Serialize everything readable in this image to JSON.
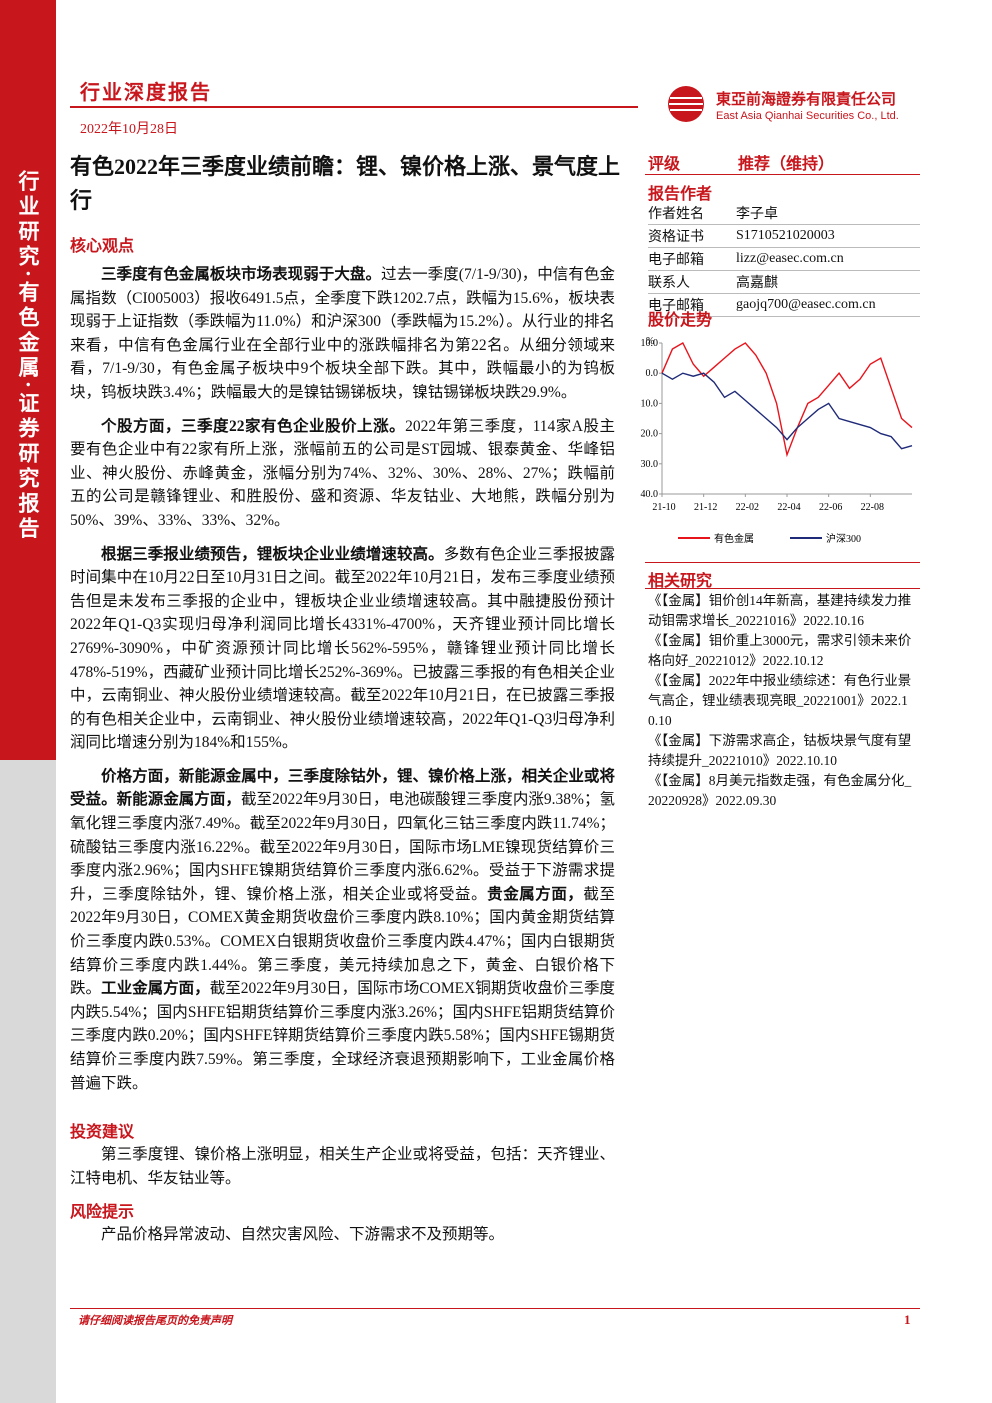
{
  "header": {
    "report_type": "行业深度报告",
    "date": "2022年10月28日",
    "company_cn": "東亞前海證券有限責任公司",
    "company_en": "East Asia Qianhai Securities Co., Ltd."
  },
  "sidebar": "行业研究·有色金属·证券研究报告",
  "title": "有色2022年三季度业绩前瞻：锂、镍价格上涨、景气度上行",
  "core": {
    "heading": "核心观点",
    "paragraphs": [
      [
        {
          "bold": true,
          "text": "三季度有色金属板块市场表现弱于大盘。"
        },
        {
          "text": "过去一季度(7/1-9/30)，中信有色金属指数（CI005003）报收6491.5点，全季度下跌1202.7点，跌幅为15.6%，板块表现弱于上证指数（季跌幅为11.0%）和沪深300（季跌幅为15.2%）。从行业的排名来看，中信有色金属行业在全部行业中的涨跌幅排名为第22名。从细分领域来看，7/1-9/30，有色金属子板块中9个板块全部下跌。其中，跌幅最小的为钨板块，钨板块跌3.4%；跌幅最大的是镍钴锡锑板块，镍钴锡锑板块跌29.9%。"
        }
      ],
      [
        {
          "bold": true,
          "text": "个股方面，三季度22家有色企业股价上涨。"
        },
        {
          "text": "2022年第三季度，114家A股主要有色企业中有22家有所上涨，涨幅前五的公司是ST园城、银泰黄金、华峰铝业、神火股份、赤峰黄金，涨幅分别为74%、32%、30%、28%、27%；跌幅前五的公司是赣锋锂业、和胜股份、盛和资源、华友钴业、大地熊，跌幅分别为50%、39%、33%、33%、32%。"
        }
      ],
      [
        {
          "bold": true,
          "text": "根据三季报业绩预告，锂板块企业业绩增速较高。"
        },
        {
          "text": "多数有色企业三季报披露时间集中在10月22日至10月31日之间。截至2022年10月21日，发布三季度业绩预告但是未发布三季报的企业中，锂板块企业业绩增速较高。其中融捷股份预计2022年Q1-Q3实现归母净利润同比增长4331%-4700%，天齐锂业预计同比增长2769%-3090%，中矿资源预计同比增长562%-595%，赣锋锂业预计同比增长478%-519%，西藏矿业预计同比增长252%-369%。已披露三季报的有色相关企业中，云南铜业、神火股份业绩增速较高。截至2022年10月21日，在已披露三季报的有色相关企业中，云南铜业、神火股份业绩增速较高，2022年Q1-Q3归母净利润同比增速分别为184%和155%。"
        }
      ],
      [
        {
          "bold": true,
          "text": "价格方面，新能源金属中，三季度除钴外，锂、镍价格上涨，相关企业或将受益。新能源金属方面，"
        },
        {
          "text": "截至2022年9月30日，电池碳酸锂三季度内涨9.38%；氢氧化锂三季度内涨7.49%。截至2022年9月30日，四氧化三钴三季度内跌11.74%；硫酸钴三季度内涨16.22%。截至2022年9月30日，国际市场LME镍现货结算价三季度内涨2.96%；国内SHFE镍期货结算价三季度内涨6.62%。受益于下游需求提升，三季度除钴外，锂、镍价格上涨，相关企业或将受益。"
        },
        {
          "bold": true,
          "text": "贵金属方面，"
        },
        {
          "text": "截至2022年9月30日，COMEX黄金期货收盘价三季度内跌8.10%；国内黄金期货结算价三季度内跌0.53%。COMEX白银期货收盘价三季度内跌4.47%；国内白银期货结算价三季度内跌1.44%。第三季度，美元持续加息之下，黄金、白银价格下跌。"
        },
        {
          "bold": true,
          "text": "工业金属方面，"
        },
        {
          "text": "截至2022年9月30日，国际市场COMEX铜期货收盘价三季度内跌5.54%；国内SHFE铝期货结算价三季度内涨3.26%；国内SHFE铝期货结算价三季度内跌0.20%；国内SHFE锌期货结算价三季度内跌5.58%；国内SHFE锡期货结算价三季度内跌7.59%。第三季度，全球经济衰退预期影响下，工业金属价格普遍下跌。"
        }
      ]
    ]
  },
  "investment": {
    "heading": "投资建议",
    "text": "第三季度锂、镍价格上涨明显，相关生产企业或将受益，包括：天齐锂业、江特电机、华友钴业等。"
  },
  "risk": {
    "heading": "风险提示",
    "text": "产品价格异常波动、自然灾害风险、下游需求不及预期等。"
  },
  "rating": {
    "label": "评级",
    "value": "推荐（维持）"
  },
  "authors": {
    "heading": "报告作者",
    "rows": [
      [
        "作者姓名",
        "李子卓"
      ],
      [
        "资格证书",
        "S1710521020003"
      ],
      [
        "电子邮箱",
        "lizz@easec.com.cn"
      ],
      [
        "联系人",
        "高嘉麒"
      ],
      [
        "电子邮箱",
        "gaojq700@easec.com.cn"
      ]
    ]
  },
  "stock_chart": {
    "heading": "股价走势",
    "type": "line",
    "unit": "%",
    "categories": [
      "21-10",
      null,
      null,
      null,
      "21-12",
      null,
      null,
      null,
      "22-02",
      null,
      null,
      null,
      "22-04",
      null,
      null,
      null,
      "22-06",
      null,
      null,
      null,
      "22-08",
      null,
      null,
      null,
      null
    ],
    "series": [
      {
        "name": "有色金属",
        "color": "#e8141c",
        "values": [
          0,
          8,
          10,
          3,
          -1,
          2,
          5,
          8,
          10,
          6,
          0,
          -10,
          -27,
          -18,
          -10,
          -8,
          -4,
          0,
          -5,
          -2,
          3,
          5,
          -5,
          -15,
          -18
        ]
      },
      {
        "name": "沪深300",
        "color": "#1f2a78",
        "values": [
          0,
          -2,
          0,
          -1,
          0,
          -3,
          -8,
          -6,
          -9,
          -12,
          -15,
          -18,
          -22,
          -18,
          -15,
          -12,
          -10,
          -15,
          -16,
          -17,
          -18,
          -20,
          -21,
          -25,
          -24
        ]
      }
    ],
    "ylim": [
      -40,
      10
    ],
    "yticks": [
      {
        "value": 10,
        "label": "10.0"
      },
      {
        "value": 0,
        "label": "0.0"
      },
      {
        "value": -10,
        "label": "-10.0"
      },
      {
        "value": -20,
        "label": "-20.0"
      },
      {
        "value": -30,
        "label": "-30.0"
      },
      {
        "value": -40,
        "label": "-40.0"
      }
    ]
  },
  "related": {
    "heading": "相关研究",
    "items": [
      "《【金属】钼价创14年新高，基建持续发力推动钼需求增长_20221016》2022.10.16",
      "《【金属】钼价重上3000元，需求引领未来价格向好_20221012》2022.10.12",
      "《【金属】2022年中报业绩综述：有色行业景气高企，锂业绩表现亮眼_20221001》2022.10.10",
      "《【金属】下游需求高企，钴板块景气度有望持续提升_20221010》2022.10.10",
      "《【金属】8月美元指数走强，有色金属分化_20220928》2022.09.30"
    ]
  },
  "footer": {
    "disclaimer": "请仔细阅读报告尾页的免责声明",
    "page": "1"
  }
}
